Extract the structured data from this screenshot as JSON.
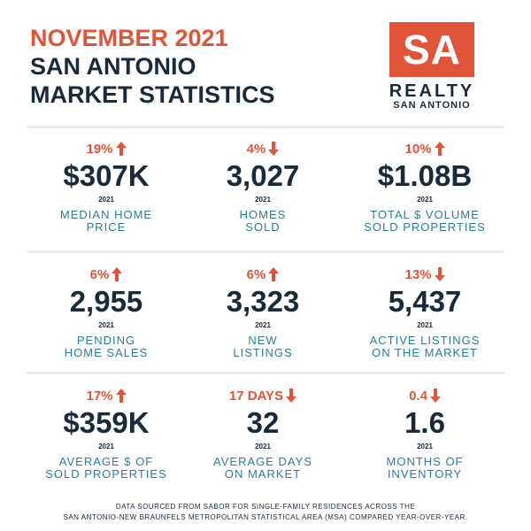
{
  "header": {
    "date": "NOVEMBER 2021",
    "title_lines": [
      "SAN ANTONIO",
      "MARKET STATISTICS"
    ]
  },
  "logo": {
    "mark": "SA",
    "name": "REALTY",
    "city": "SAN ANTONIO"
  },
  "stats": [
    {
      "change": "19%",
      "direction": "up",
      "value": "$307K",
      "year": "2021",
      "label_lines": [
        "MEDIAN HOME",
        "PRICE"
      ]
    },
    {
      "change": "4%",
      "direction": "down",
      "value": "3,027",
      "year": "2021",
      "label_lines": [
        "HOMES",
        "SOLD"
      ]
    },
    {
      "change": "10%",
      "direction": "up",
      "value": "$1.08B",
      "year": "2021",
      "label_lines": [
        "TOTAL $ VOLUME",
        "SOLD PROPERTIES"
      ]
    },
    {
      "change": "6%",
      "direction": "up",
      "value": "2,955",
      "year": "2021",
      "label_lines": [
        "PENDING",
        "HOME SALES"
      ]
    },
    {
      "change": "6%",
      "direction": "up",
      "value": "3,323",
      "year": "2021",
      "label_lines": [
        "NEW",
        "LISTINGS"
      ]
    },
    {
      "change": "13%",
      "direction": "down",
      "value": "5,437",
      "year": "2021",
      "label_lines": [
        "ACTIVE LISTINGS",
        "ON THE MARKET"
      ]
    },
    {
      "change": "17%",
      "direction": "up",
      "value": "$359K",
      "year": "2021",
      "label_lines": [
        "AVERAGE $ OF",
        "SOLD PROPERTIES"
      ]
    },
    {
      "change": "17 DAYS",
      "direction": "down",
      "value": "32",
      "year": "2021",
      "label_lines": [
        "AVERAGE DAYS",
        "ON MARKET"
      ]
    },
    {
      "change": "0.4",
      "direction": "down",
      "value": "1.6",
      "year": "2021",
      "label_lines": [
        "MONTHS OF",
        "INVENTORY"
      ]
    }
  ],
  "footer": {
    "lines": [
      "DATA SOURCED FROM SABOR FOR SINGLE-FAMILY RESIDENCES ACROSS THE",
      "SAN ANTONIO-NEW BRAUNFELS METROPOLITAN STATISTICAL AREA (MSA) COMPARED YEAR-OVER-YEAR."
    ]
  }
}
